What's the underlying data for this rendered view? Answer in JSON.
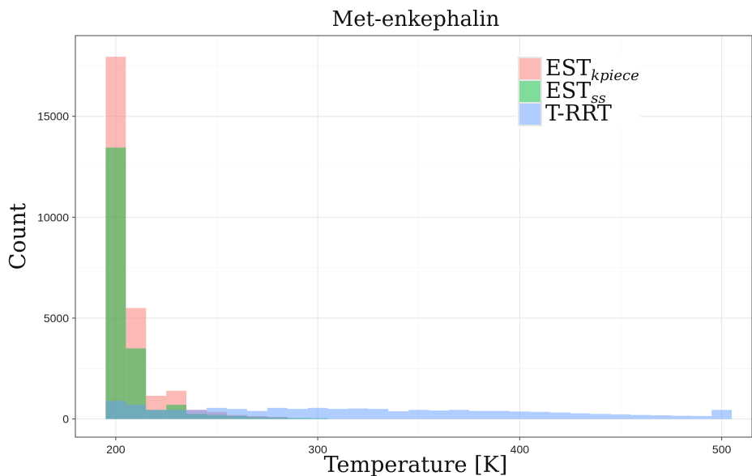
{
  "chart_data": {
    "type": "bar",
    "subtype": "overlaid-histogram",
    "title": "Met-enkephalin",
    "xlabel": "Temperature [K]",
    "ylabel": "Count",
    "xlim": [
      180,
      515
    ],
    "ylim": [
      -900,
      19000
    ],
    "xticks": [
      200,
      300,
      400,
      500
    ],
    "yticks": [
      0,
      5000,
      10000,
      15000
    ],
    "grid": true,
    "legend_position": "top-right",
    "series": [
      {
        "name": "EST",
        "subscript": "kpiece",
        "color": "#F8766D",
        "opacity": 0.5,
        "bins": [
          {
            "x0": 195,
            "x1": 205,
            "count": 17950
          },
          {
            "x0": 205,
            "x1": 215,
            "count": 5500
          },
          {
            "x0": 215,
            "x1": 225,
            "count": 1150
          },
          {
            "x0": 225,
            "x1": 235,
            "count": 1400
          },
          {
            "x0": 235,
            "x1": 245,
            "count": 450
          },
          {
            "x0": 245,
            "x1": 255,
            "count": 350
          },
          {
            "x0": 255,
            "x1": 265,
            "count": 200
          },
          {
            "x0": 265,
            "x1": 275,
            "count": 150
          },
          {
            "x0": 275,
            "x1": 285,
            "count": 100
          }
        ]
      },
      {
        "name": "EST",
        "subscript": "ss",
        "color": "#00BA38",
        "opacity": 0.5,
        "bins": [
          {
            "x0": 195,
            "x1": 205,
            "count": 13450
          },
          {
            "x0": 205,
            "x1": 215,
            "count": 3500
          },
          {
            "x0": 215,
            "x1": 225,
            "count": 450
          },
          {
            "x0": 225,
            "x1": 235,
            "count": 700
          },
          {
            "x0": 235,
            "x1": 245,
            "count": 250
          },
          {
            "x0": 245,
            "x1": 255,
            "count": 200
          },
          {
            "x0": 255,
            "x1": 265,
            "count": 150
          },
          {
            "x0": 265,
            "x1": 275,
            "count": 100
          },
          {
            "x0": 275,
            "x1": 285,
            "count": 80
          },
          {
            "x0": 285,
            "x1": 295,
            "count": 60
          },
          {
            "x0": 295,
            "x1": 305,
            "count": 50
          }
        ]
      },
      {
        "name": "T-RRT",
        "subscript": "",
        "color": "#619CFF",
        "opacity": 0.5,
        "bins": [
          {
            "x0": 195,
            "x1": 205,
            "count": 900
          },
          {
            "x0": 205,
            "x1": 215,
            "count": 700
          },
          {
            "x0": 215,
            "x1": 225,
            "count": 450
          },
          {
            "x0": 225,
            "x1": 235,
            "count": 450
          },
          {
            "x0": 235,
            "x1": 245,
            "count": 450
          },
          {
            "x0": 245,
            "x1": 255,
            "count": 550
          },
          {
            "x0": 255,
            "x1": 265,
            "count": 500
          },
          {
            "x0": 265,
            "x1": 275,
            "count": 400
          },
          {
            "x0": 275,
            "x1": 285,
            "count": 550
          },
          {
            "x0": 285,
            "x1": 295,
            "count": 500
          },
          {
            "x0": 295,
            "x1": 305,
            "count": 550
          },
          {
            "x0": 305,
            "x1": 315,
            "count": 500
          },
          {
            "x0": 315,
            "x1": 325,
            "count": 520
          },
          {
            "x0": 325,
            "x1": 335,
            "count": 500
          },
          {
            "x0": 335,
            "x1": 345,
            "count": 380
          },
          {
            "x0": 345,
            "x1": 355,
            "count": 450
          },
          {
            "x0": 355,
            "x1": 365,
            "count": 420
          },
          {
            "x0": 365,
            "x1": 375,
            "count": 450
          },
          {
            "x0": 375,
            "x1": 385,
            "count": 400
          },
          {
            "x0": 385,
            "x1": 395,
            "count": 400
          },
          {
            "x0": 395,
            "x1": 405,
            "count": 370
          },
          {
            "x0": 405,
            "x1": 415,
            "count": 350
          },
          {
            "x0": 415,
            "x1": 425,
            "count": 320
          },
          {
            "x0": 425,
            "x1": 435,
            "count": 280
          },
          {
            "x0": 435,
            "x1": 445,
            "count": 250
          },
          {
            "x0": 445,
            "x1": 455,
            "count": 230
          },
          {
            "x0": 455,
            "x1": 465,
            "count": 200
          },
          {
            "x0": 465,
            "x1": 475,
            "count": 180
          },
          {
            "x0": 475,
            "x1": 485,
            "count": 160
          },
          {
            "x0": 485,
            "x1": 495,
            "count": 150
          },
          {
            "x0": 495,
            "x1": 505,
            "count": 450
          }
        ]
      }
    ]
  }
}
